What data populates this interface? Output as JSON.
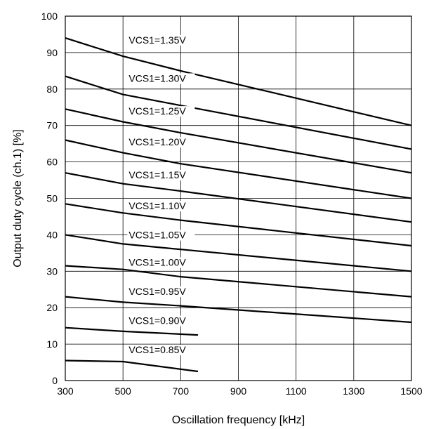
{
  "chart_data": {
    "type": "line",
    "xlabel": "Oscillation frequency [kHz]",
    "ylabel": "Output duty cycle (ch.1) [%]",
    "xlim": [
      300,
      1500
    ],
    "ylim": [
      0,
      100
    ],
    "grid": true,
    "legend": "none",
    "x_ticks": [
      "300",
      "500",
      "700",
      "900",
      "1100",
      "1300",
      "1500"
    ],
    "y_ticks": [
      "0",
      "10",
      "20",
      "30",
      "40",
      "50",
      "60",
      "70",
      "80",
      "90",
      "100"
    ],
    "series": [
      {
        "name": "VCS1=1.35V",
        "x": [
          300,
          500,
          700,
          1500
        ],
        "y": [
          94,
          89,
          85,
          70
        ]
      },
      {
        "name": "VCS1=1.30V",
        "x": [
          300,
          500,
          700,
          1500
        ],
        "y": [
          83.5,
          78.5,
          75.5,
          63.5
        ]
      },
      {
        "name": "VCS1=1.25V",
        "x": [
          300,
          500,
          700,
          1500
        ],
        "y": [
          74.5,
          71,
          68,
          57
        ]
      },
      {
        "name": "VCS1=1.20V",
        "x": [
          300,
          500,
          700,
          1500
        ],
        "y": [
          66,
          62.5,
          59.5,
          50
        ]
      },
      {
        "name": "VCS1=1.15V",
        "x": [
          300,
          500,
          700,
          1500
        ],
        "y": [
          57,
          54,
          52,
          43.5
        ]
      },
      {
        "name": "VCS1=1.10V",
        "x": [
          300,
          500,
          700,
          1500
        ],
        "y": [
          48.5,
          46,
          44,
          37
        ]
      },
      {
        "name": "VCS1=1.05V",
        "x": [
          300,
          500,
          700,
          1500
        ],
        "y": [
          40,
          37.5,
          36,
          30
        ]
      },
      {
        "name": "VCS1=1.00V",
        "x": [
          300,
          500,
          700,
          1500
        ],
        "y": [
          31.5,
          30.5,
          28.5,
          23
        ]
      },
      {
        "name": "VCS1=0.95V",
        "x": [
          300,
          500,
          700,
          1500
        ],
        "y": [
          23,
          21.5,
          20.5,
          16
        ]
      },
      {
        "name": "VCS1=0.90V",
        "x": [
          300,
          500,
          760
        ],
        "y": [
          14.5,
          13.5,
          12.5
        ]
      },
      {
        "name": "VCS1=0.85V",
        "x": [
          300,
          500,
          760
        ],
        "y": [
          5.5,
          5.2,
          2.5
        ]
      }
    ],
    "labels": [
      {
        "text": "VCS1=1.35V",
        "x": 520,
        "y": 92.5
      },
      {
        "text": "VCS1=1.30V",
        "x": 520,
        "y": 82
      },
      {
        "text": "VCS1=1.25V",
        "x": 520,
        "y": 73
      },
      {
        "text": "VCS1=1.20V",
        "x": 520,
        "y": 64.5
      },
      {
        "text": "VCS1=1.15V",
        "x": 520,
        "y": 55.5
      },
      {
        "text": "VCS1=1.10V",
        "x": 520,
        "y": 47
      },
      {
        "text": "VCS1=1.05V",
        "x": 520,
        "y": 39
      },
      {
        "text": "VCS1=1.00V",
        "x": 520,
        "y": 31.5
      },
      {
        "text": "VCS1=0.95V",
        "x": 520,
        "y": 23.5
      },
      {
        "text": "VCS1=0.90V",
        "x": 520,
        "y": 15.5
      },
      {
        "text": "VCS1=0.85V",
        "x": 520,
        "y": 7.5
      }
    ]
  }
}
